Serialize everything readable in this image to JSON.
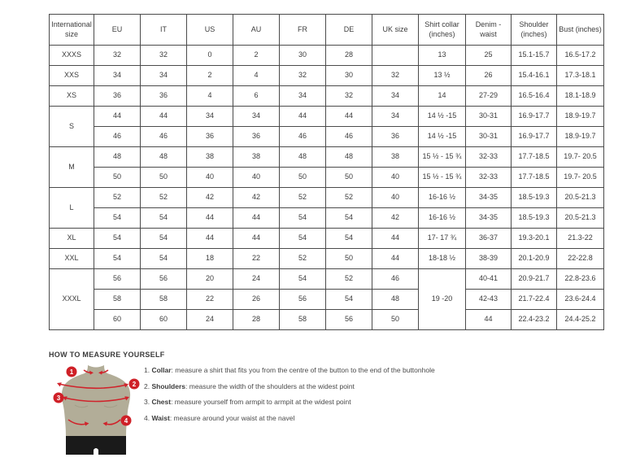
{
  "table": {
    "columns": [
      "International size",
      "EU",
      "IT",
      "US",
      "AU",
      "FR",
      "DE",
      "UK size",
      "Shirt collar (inches)",
      "Denim - waist",
      "Shoulder (inches)",
      "Bust (inches)"
    ],
    "groups": [
      {
        "size": "XXXS",
        "rows": [
          [
            "32",
            "32",
            "0",
            "2",
            "30",
            "28",
            "",
            "13",
            "25",
            "15.1-15.7",
            "16.5-17.2"
          ]
        ]
      },
      {
        "size": "XXS",
        "rows": [
          [
            "34",
            "34",
            "2",
            "4",
            "32",
            "30",
            "32",
            "13 ½",
            "26",
            "15.4-16.1",
            "17.3-18.1"
          ]
        ]
      },
      {
        "size": "XS",
        "rows": [
          [
            "36",
            "36",
            "4",
            "6",
            "34",
            "32",
            "34",
            "14",
            "27-29",
            "16.5-16.4",
            "18.1-18.9"
          ]
        ]
      },
      {
        "size": "S",
        "rows": [
          [
            "44",
            "44",
            "34",
            "34",
            "44",
            "44",
            "34",
            "14 ½ -15",
            "30-31",
            "16.9-17.7",
            "18.9-19.7"
          ],
          [
            "46",
            "46",
            "36",
            "36",
            "46",
            "46",
            "36",
            "14 ½ -15",
            "30-31",
            "16.9-17.7",
            "18.9-19.7"
          ]
        ]
      },
      {
        "size": "M",
        "rows": [
          [
            "48",
            "48",
            "38",
            "38",
            "48",
            "48",
            "38",
            "15 ½ - 15 ¾",
            "32-33",
            "17.7-18.5",
            "19.7- 20.5"
          ],
          [
            "50",
            "50",
            "40",
            "40",
            "50",
            "50",
            "40",
            "15 ½ - 15 ¾",
            "32-33",
            "17.7-18.5",
            "19.7- 20.5"
          ]
        ]
      },
      {
        "size": "L",
        "rows": [
          [
            "52",
            "52",
            "42",
            "42",
            "52",
            "52",
            "40",
            "16-16 ½",
            "34-35",
            "18.5-19.3",
            "20.5-21.3"
          ],
          [
            "54",
            "54",
            "44",
            "44",
            "54",
            "54",
            "42",
            "16-16 ½",
            "34-35",
            "18.5-19.3",
            "20.5-21.3"
          ]
        ]
      },
      {
        "size": "XL",
        "rows": [
          [
            "54",
            "54",
            "44",
            "44",
            "54",
            "54",
            "44",
            "17- 17 ¾",
            "36-37",
            "19.3-20.1",
            "21.3-22"
          ]
        ]
      },
      {
        "size": "XXL",
        "rows": [
          [
            "54",
            "54",
            "18",
            "22",
            "52",
            "50",
            "44",
            "18-18 ½",
            "38-39",
            "20.1-20.9",
            "22-22.8"
          ]
        ]
      },
      {
        "size": "XXXL",
        "collar_merged": "19 -20",
        "rows": [
          [
            "56",
            "56",
            "20",
            "24",
            "54",
            "52",
            "46",
            "40-41",
            "20.9-21.7",
            "22.8-23.6"
          ],
          [
            "58",
            "58",
            "22",
            "26",
            "56",
            "54",
            "48",
            "42-43",
            "21.7-22.4",
            "23.6-24.4"
          ],
          [
            "60",
            "60",
            "24",
            "28",
            "58",
            "56",
            "50",
            "44",
            "22.4-23.2",
            "24.4-25.2"
          ]
        ]
      }
    ]
  },
  "measure": {
    "heading": "HOW TO MEASURE YOURSELF",
    "steps": [
      {
        "num": "1.",
        "label": "Collar",
        "text": "measure a shirt that fits you from the centre of the button to the end of the buttonhole"
      },
      {
        "num": "2.",
        "label": "Shoulders",
        "text": "measure the width of the shoulders at the widest point"
      },
      {
        "num": "3.",
        "label": "Chest",
        "text": "measure yourself from armpit to armpit at the widest point"
      },
      {
        "num": "4.",
        "label": "Waist",
        "text": "measure around your waist at the navel"
      }
    ],
    "figure_badges": [
      "1",
      "2",
      "3",
      "4"
    ]
  },
  "colors": {
    "accent_red": "#d0232b",
    "badge_red": "#cf2027",
    "torso": "#b2ad98",
    "shorts": "#1a1a1a",
    "border": "#4b4b4b",
    "text": "#3c3c3c"
  }
}
